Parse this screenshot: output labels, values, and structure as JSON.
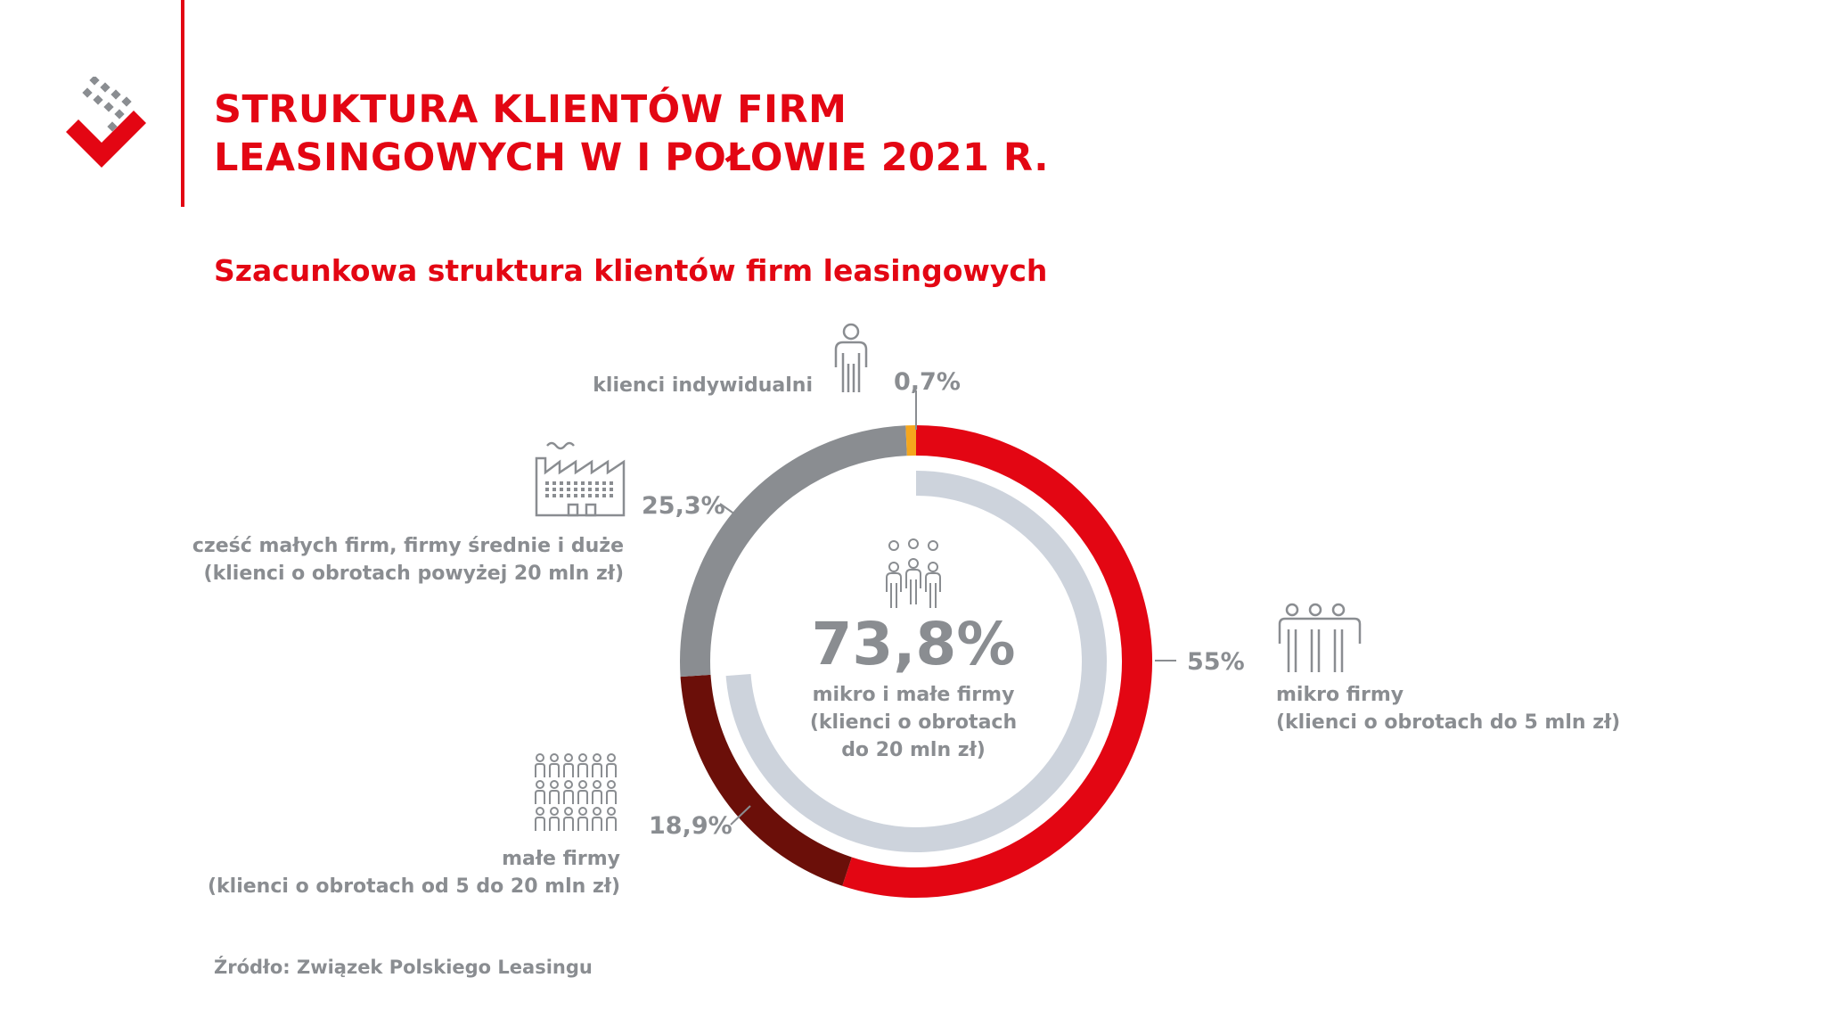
{
  "header": {
    "title_line1": "STRUKTURA KLIENTÓW FIRM",
    "title_line2": "LEASINGOWYCH W I POŁOWIE 2021 R."
  },
  "subtitle": "Szacunkowa struktura klientów firm leasingowych",
  "center": {
    "value": "73,8%",
    "desc_line1": "mikro i małe firmy",
    "desc_line2": "(klienci o obrotach",
    "desc_line3": "do 20 mln zł)"
  },
  "chart_data": {
    "type": "pie",
    "title": "Szacunkowa struktura klientów firm leasingowych",
    "slices": [
      {
        "label": "mikro firmy",
        "detail": "(klienci o obrotach do 5 mln zł)",
        "value": 55,
        "display": "55%",
        "color": "#e30613",
        "icon": "people-three-icon"
      },
      {
        "label": "małe firmy",
        "detail": "(klienci o obrotach od 5 do 20 mln zł)",
        "value": 18.9,
        "display": "18,9%",
        "color": "#6b0f09",
        "icon": "people-crowd-icon"
      },
      {
        "label": "cześć małych firm, firmy średnie i duże",
        "detail": "(klienci o obrotach powyżej 20 mln zł)",
        "value": 25.3,
        "display": "25,3%",
        "color": "#8a8d91",
        "icon": "factory-icon"
      },
      {
        "label": "klienci indywidualni",
        "detail": "",
        "value": 0.7,
        "display": "0,7%",
        "color": "#f5a61d",
        "icon": "person-icon"
      }
    ],
    "inner_ring": {
      "value": 73.8,
      "color": "#cdd3dc"
    }
  },
  "source": "Źródło: Związek Polskiego Leasingu",
  "colors": {
    "accent": "#e30613",
    "text": "#8a8d91"
  }
}
